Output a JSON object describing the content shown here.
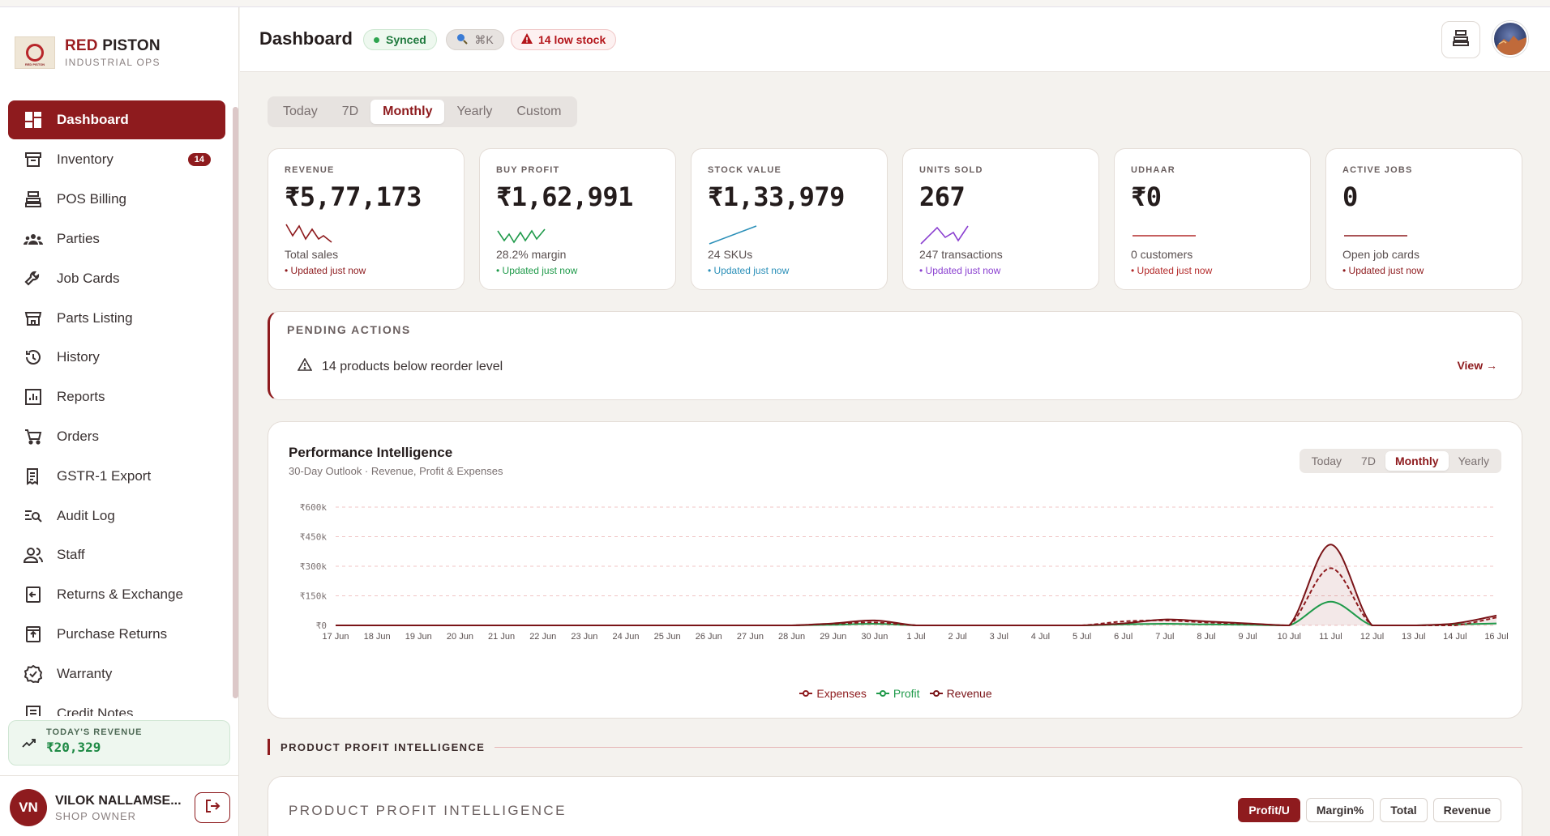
{
  "brand": {
    "name_red": "RED",
    "name_dark": "PISTON",
    "subtitle": "INDUSTRIAL OPS",
    "logo_text": "RED PISTON"
  },
  "sidebar": {
    "items": [
      {
        "label": "Dashboard",
        "icon": "dashboard-icon",
        "active": true
      },
      {
        "label": "Inventory",
        "icon": "inventory-icon",
        "badge": "14"
      },
      {
        "label": "POS Billing",
        "icon": "cash-register-icon"
      },
      {
        "label": "Parties",
        "icon": "people-icon"
      },
      {
        "label": "Job Cards",
        "icon": "wrench-icon"
      },
      {
        "label": "Parts Listing",
        "icon": "storefront-icon"
      },
      {
        "label": "History",
        "icon": "history-icon"
      },
      {
        "label": "Reports",
        "icon": "bar-chart-icon"
      },
      {
        "label": "Orders",
        "icon": "cart-icon"
      },
      {
        "label": "GSTR-1 Export",
        "icon": "receipt-icon"
      },
      {
        "label": "Audit Log",
        "icon": "audit-search-icon"
      },
      {
        "label": "Staff",
        "icon": "staff-icon"
      },
      {
        "label": "Returns & Exchange",
        "icon": "return-box-icon"
      },
      {
        "label": "Purchase Returns",
        "icon": "purchase-return-icon"
      },
      {
        "label": "Warranty",
        "icon": "warranty-badge-icon"
      },
      {
        "label": "Credit Notes",
        "icon": "credit-note-icon"
      }
    ],
    "today_revenue": {
      "label": "TODAY'S REVENUE",
      "value": "₹20,329"
    },
    "user": {
      "initials": "VN",
      "name": "VILOK NALLAMSE...",
      "role": "SHOP OWNER"
    }
  },
  "header": {
    "title": "Dashboard",
    "synced": "Synced",
    "search_shortcut": "⌘K",
    "low_stock": "14 low stock"
  },
  "period_tabs": [
    "Today",
    "7D",
    "Monthly",
    "Yearly",
    "Custom"
  ],
  "active_period": "Monthly",
  "kpis": [
    {
      "label": "REVENUE",
      "value": "₹5,77,173",
      "sub": "Total sales",
      "updated": "• Updated just now",
      "color": "#8e1b1e"
    },
    {
      "label": "BUY PROFIT",
      "value": "₹1,62,991",
      "sub": "28.2% margin",
      "updated": "• Updated just now",
      "color": "#1f9a4a"
    },
    {
      "label": "STOCK VALUE",
      "value": "₹1,33,979",
      "sub": "24 SKUs",
      "updated": "• Updated just now",
      "color": "#2a8fb8"
    },
    {
      "label": "UNITS SOLD",
      "value": "267",
      "sub": "247 transactions",
      "updated": "• Updated just now",
      "color": "#8a3fd0"
    },
    {
      "label": "UDHAAR",
      "value": "₹0",
      "sub": "0 customers",
      "updated": "• Updated just now",
      "color": "#b42b2b"
    },
    {
      "label": "ACTIVE JOBS",
      "value": "0",
      "sub": "Open job cards",
      "updated": "• Updated just now",
      "color": "#8e1b1e"
    }
  ],
  "pending": {
    "title": "PENDING ACTIONS",
    "item": "14 products below reorder level",
    "view": "View →"
  },
  "performance": {
    "title": "Performance Intelligence",
    "subtitle": "30-Day Outlook · Revenue, Profit & Expenses",
    "tabs": [
      "Today",
      "7D",
      "Monthly",
      "Yearly"
    ],
    "active_tab": "Monthly"
  },
  "chart_data": {
    "type": "area",
    "x": [
      "17 Jun",
      "18 Jun",
      "19 Jun",
      "20 Jun",
      "21 Jun",
      "22 Jun",
      "23 Jun",
      "24 Jun",
      "25 Jun",
      "26 Jun",
      "27 Jun",
      "28 Jun",
      "29 Jun",
      "30 Jun",
      "1 Jul",
      "2 Jul",
      "3 Jul",
      "4 Jul",
      "5 Jul",
      "6 Jul",
      "7 Jul",
      "8 Jul",
      "9 Jul",
      "10 Jul",
      "11 Jul",
      "12 Jul",
      "13 Jul",
      "14 Jul",
      "16 Jul"
    ],
    "yticks": [
      "₹0",
      "₹150k",
      "₹300k",
      "₹450k",
      "₹600k"
    ],
    "ylim": [
      0,
      600000
    ],
    "series": [
      {
        "name": "Expenses",
        "color": "#8e1b1e",
        "dashed": true,
        "values": [
          0,
          0,
          0,
          0,
          0,
          0,
          0,
          0,
          0,
          0,
          0,
          0,
          8000,
          15000,
          0,
          0,
          0,
          0,
          0,
          20000,
          25000,
          15000,
          8000,
          0,
          290000,
          0,
          0,
          0,
          40000
        ]
      },
      {
        "name": "Profit",
        "color": "#1f9a4a",
        "dashed": false,
        "values": [
          0,
          0,
          0,
          0,
          0,
          0,
          0,
          0,
          0,
          0,
          0,
          0,
          3000,
          8000,
          0,
          0,
          0,
          0,
          0,
          5000,
          8000,
          5000,
          3000,
          0,
          120000,
          0,
          0,
          5000,
          10000
        ]
      },
      {
        "name": "Revenue",
        "color": "#7a1418",
        "dashed": false,
        "values": [
          0,
          0,
          0,
          0,
          0,
          0,
          0,
          0,
          0,
          0,
          0,
          0,
          10000,
          25000,
          0,
          0,
          0,
          0,
          0,
          10000,
          30000,
          20000,
          10000,
          0,
          410000,
          0,
          0,
          10000,
          50000
        ]
      }
    ],
    "legend_position": "bottom",
    "grid": true
  },
  "product_profit": {
    "section_label": "PRODUCT PROFIT INTELLIGENCE",
    "card_title": "PRODUCT PROFIT INTELLIGENCE",
    "buttons": [
      "Profit/U",
      "Margin%",
      "Total",
      "Revenue"
    ],
    "active_button": "Profit/U"
  }
}
